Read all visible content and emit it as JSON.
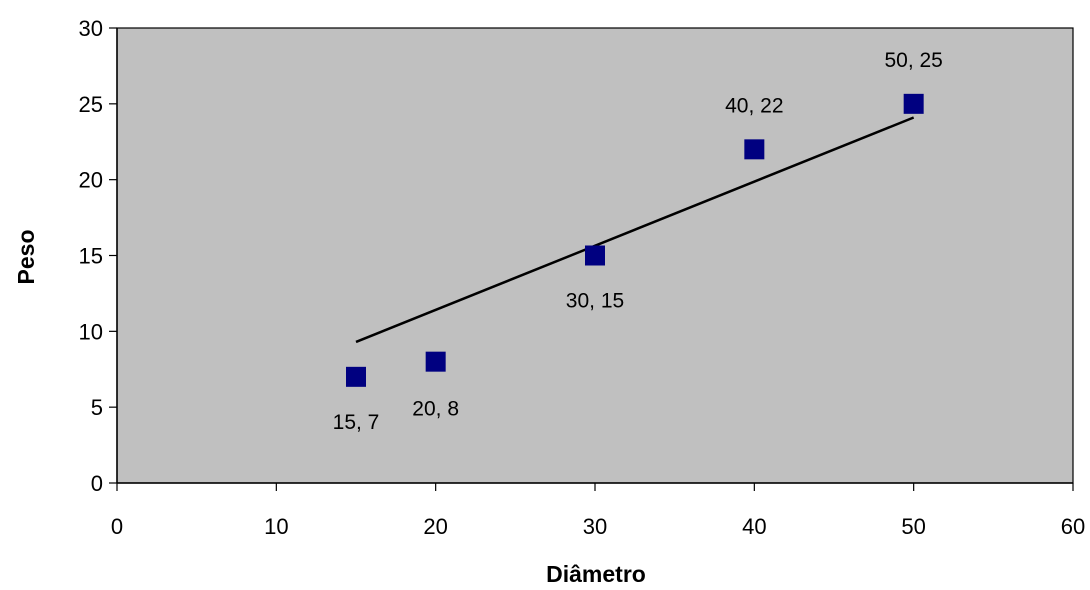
{
  "chart_data": {
    "type": "scatter",
    "xlabel": "Diâmetro",
    "ylabel": "Peso",
    "xlim": [
      0,
      60
    ],
    "ylim": [
      0,
      30
    ],
    "xticks": [
      0,
      10,
      20,
      30,
      40,
      50,
      60
    ],
    "yticks": [
      0,
      5,
      10,
      15,
      20,
      25,
      30
    ],
    "grid": false,
    "legend": "none",
    "series": [
      {
        "points": [
          {
            "x": 15,
            "y": 7,
            "label": "15, 7"
          },
          {
            "x": 20,
            "y": 8,
            "label": "20, 8"
          },
          {
            "x": 30,
            "y": 15,
            "label": "30, 15"
          },
          {
            "x": 40,
            "y": 22,
            "label": "40, 22"
          },
          {
            "x": 50,
            "y": 25,
            "label": "50, 25"
          }
        ]
      }
    ],
    "trendline": {
      "type": "linear",
      "from": {
        "x": 15,
        "y": 9.3
      },
      "to": {
        "x": 50,
        "y": 24.1
      }
    },
    "colors": {
      "plot_background": "#c0c0c0",
      "marker": "#000080",
      "trendline": "#000000",
      "axis": "#000000"
    }
  }
}
